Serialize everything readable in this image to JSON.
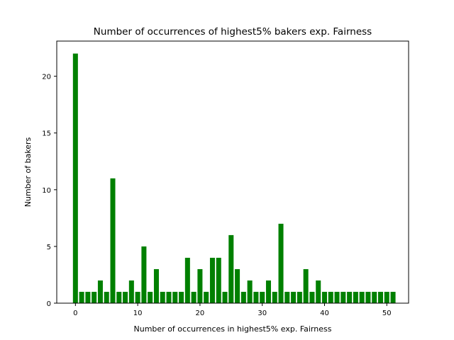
{
  "chart_data": {
    "type": "bar",
    "title": "Number of occurrences of highest5% bakers exp. Fairness",
    "xlabel": "Number of occurrences in highest5% exp. Fairness",
    "ylabel": "Number of bakers",
    "x": [
      0,
      1,
      2,
      3,
      4,
      5,
      6,
      7,
      8,
      9,
      10,
      11,
      12,
      13,
      14,
      15,
      16,
      17,
      18,
      19,
      20,
      21,
      22,
      23,
      24,
      25,
      26,
      27,
      28,
      29,
      30,
      31,
      32,
      33,
      34,
      35,
      36,
      37,
      38,
      39,
      40,
      41,
      42,
      43,
      44,
      45,
      46,
      47,
      48,
      49,
      50,
      51
    ],
    "values": [
      22,
      1,
      1,
      1,
      2,
      1,
      11,
      1,
      1,
      2,
      1,
      5,
      1,
      3,
      1,
      1,
      1,
      1,
      4,
      1,
      3,
      1,
      4,
      4,
      1,
      6,
      3,
      1,
      2,
      1,
      1,
      2,
      1,
      7,
      1,
      1,
      1,
      3,
      1,
      2,
      1,
      1,
      1,
      1,
      1,
      1,
      1,
      1,
      1,
      1,
      1,
      1
    ],
    "xlim": [
      -3,
      53.5
    ],
    "ylim": [
      0,
      23.1
    ],
    "xticks": [
      0,
      10,
      20,
      30,
      40,
      50
    ],
    "yticks": [
      0,
      5,
      10,
      15,
      20
    ],
    "bar_color": "#008000",
    "grid": false
  }
}
